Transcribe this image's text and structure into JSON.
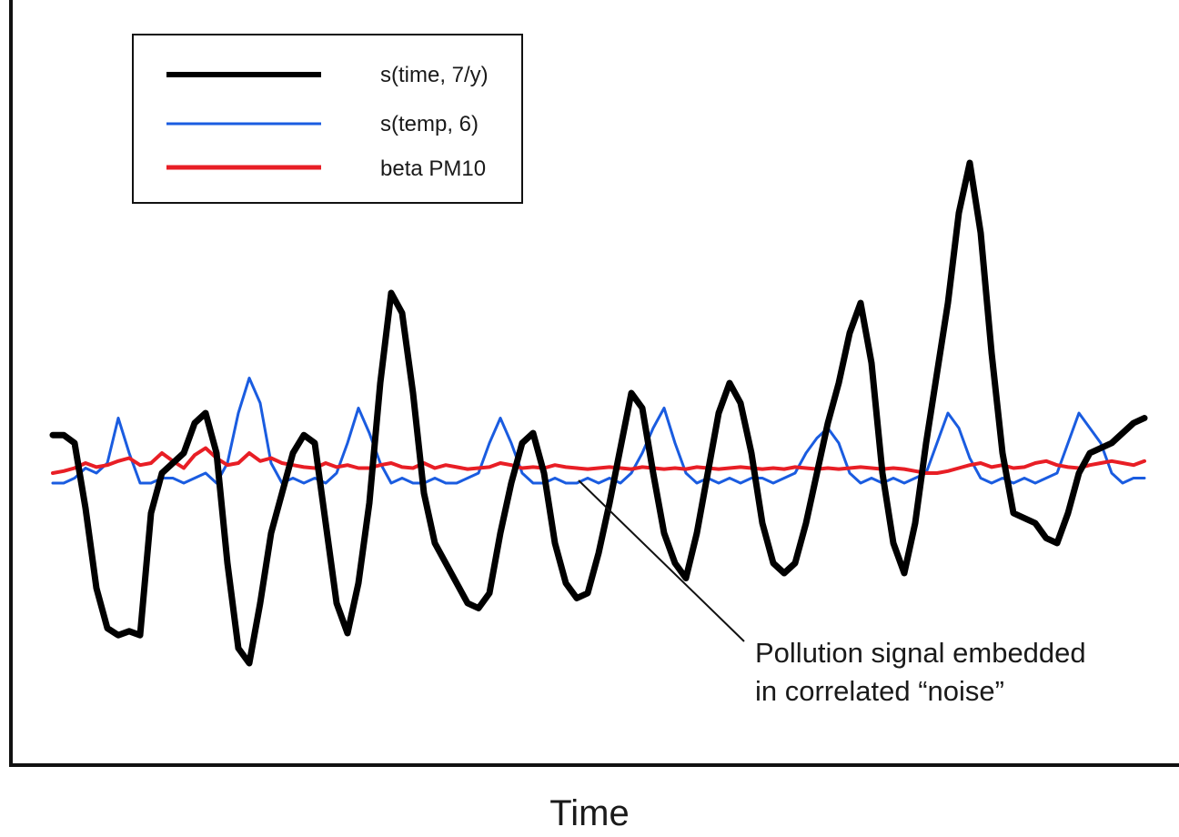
{
  "chart_data": {
    "type": "line",
    "title": "",
    "xlabel": "Time",
    "ylabel": "",
    "grid": false,
    "legend_placement": "top-left",
    "x": [
      0,
      1,
      2,
      3,
      4,
      5,
      6,
      7,
      8,
      9,
      10,
      11,
      12,
      13,
      14,
      15,
      16,
      17,
      18,
      19,
      20,
      21,
      22,
      23,
      24,
      25,
      26,
      27,
      28,
      29,
      30,
      31,
      32,
      33,
      34,
      35,
      36,
      37,
      38,
      39,
      40,
      41,
      42,
      43,
      44,
      45,
      46,
      47,
      48,
      49,
      50,
      51,
      52,
      53,
      54,
      55,
      56,
      57,
      58,
      59,
      60,
      61,
      62,
      63,
      64,
      65,
      66,
      67,
      68,
      69,
      70,
      71,
      72,
      73,
      74,
      75,
      76,
      77,
      78,
      79,
      80,
      81,
      82,
      83,
      84,
      85,
      86,
      87,
      88,
      89,
      90,
      91,
      92,
      93,
      94,
      95,
      96,
      97,
      98,
      99,
      100
    ],
    "ylim": [
      -2.5,
      2.5
    ],
    "series": [
      {
        "name": "s(time, 7/y)",
        "color": "#000000",
        "values": [
          0.38,
          0.38,
          0.3,
          -0.35,
          -1.15,
          -1.55,
          -1.62,
          -1.58,
          -1.62,
          -0.4,
          0.0,
          0.1,
          0.2,
          0.5,
          0.6,
          0.2,
          -0.9,
          -1.75,
          -1.9,
          -1.3,
          -0.6,
          -0.2,
          0.2,
          0.38,
          0.3,
          -0.5,
          -1.3,
          -1.6,
          -1.1,
          -0.3,
          0.9,
          1.8,
          1.6,
          0.8,
          -0.2,
          -0.7,
          -0.9,
          -1.1,
          -1.3,
          -1.35,
          -1.2,
          -0.6,
          -0.1,
          0.3,
          0.4,
          0.0,
          -0.7,
          -1.1,
          -1.25,
          -1.2,
          -0.8,
          -0.3,
          0.25,
          0.8,
          0.65,
          0.0,
          -0.6,
          -0.9,
          -1.05,
          -0.6,
          0.0,
          0.6,
          0.9,
          0.7,
          0.2,
          -0.5,
          -0.9,
          -1.0,
          -0.9,
          -0.5,
          0.0,
          0.5,
          0.9,
          1.4,
          1.7,
          1.1,
          0.0,
          -0.7,
          -1.0,
          -0.5,
          0.3,
          1.0,
          1.7,
          2.6,
          3.1,
          2.4,
          1.2,
          0.2,
          -0.4,
          -0.45,
          -0.5,
          -0.65,
          -0.7,
          -0.4,
          0.0,
          0.2,
          0.25,
          0.3,
          0.4,
          0.5,
          0.55
        ]
      },
      {
        "name": "s(temp, 6)",
        "color": "#1a5ce0",
        "values": [
          -0.1,
          -0.1,
          -0.05,
          0.05,
          0.0,
          0.1,
          0.55,
          0.2,
          -0.1,
          -0.1,
          -0.05,
          -0.05,
          -0.1,
          -0.05,
          0.0,
          -0.1,
          0.1,
          0.6,
          0.95,
          0.7,
          0.1,
          -0.1,
          -0.05,
          -0.1,
          -0.05,
          -0.1,
          0.0,
          0.3,
          0.65,
          0.4,
          0.1,
          -0.1,
          -0.05,
          -0.1,
          -0.1,
          -0.05,
          -0.1,
          -0.1,
          -0.05,
          0.0,
          0.3,
          0.55,
          0.3,
          0.0,
          -0.1,
          -0.1,
          -0.05,
          -0.1,
          -0.1,
          -0.05,
          -0.1,
          -0.05,
          -0.1,
          0.0,
          0.2,
          0.45,
          0.65,
          0.3,
          0.0,
          -0.1,
          -0.05,
          -0.1,
          -0.05,
          -0.1,
          -0.05,
          -0.05,
          -0.1,
          -0.05,
          0.0,
          0.2,
          0.35,
          0.45,
          0.3,
          0.0,
          -0.1,
          -0.05,
          -0.1,
          -0.05,
          -0.1,
          -0.05,
          0.0,
          0.3,
          0.6,
          0.45,
          0.15,
          -0.05,
          -0.1,
          -0.05,
          -0.1,
          -0.05,
          -0.1,
          -0.05,
          0.0,
          0.3,
          0.6,
          0.45,
          0.3,
          0.0,
          -0.1,
          -0.05,
          -0.05
        ]
      },
      {
        "name": "beta PM10",
        "color": "#e81e25",
        "values": [
          0.0,
          0.02,
          0.05,
          0.1,
          0.06,
          0.08,
          0.12,
          0.15,
          0.08,
          0.1,
          0.2,
          0.12,
          0.05,
          0.18,
          0.25,
          0.15,
          0.08,
          0.1,
          0.2,
          0.12,
          0.15,
          0.1,
          0.08,
          0.06,
          0.05,
          0.1,
          0.06,
          0.08,
          0.05,
          0.05,
          0.08,
          0.1,
          0.06,
          0.05,
          0.1,
          0.05,
          0.08,
          0.06,
          0.04,
          0.05,
          0.06,
          0.1,
          0.08,
          0.05,
          0.06,
          0.05,
          0.08,
          0.06,
          0.05,
          0.04,
          0.05,
          0.06,
          0.05,
          0.04,
          0.06,
          0.05,
          0.04,
          0.05,
          0.04,
          0.06,
          0.05,
          0.04,
          0.05,
          0.06,
          0.05,
          0.04,
          0.05,
          0.04,
          0.06,
          0.05,
          0.04,
          0.05,
          0.04,
          0.05,
          0.06,
          0.05,
          0.04,
          0.05,
          0.04,
          0.02,
          0.0,
          0.0,
          0.02,
          0.05,
          0.08,
          0.1,
          0.06,
          0.08,
          0.05,
          0.06,
          0.1,
          0.12,
          0.08,
          0.06,
          0.05,
          0.08,
          0.1,
          0.12,
          0.1,
          0.08,
          0.12
        ]
      }
    ],
    "annotations": [
      {
        "text_line1": "Pollution signal embedded",
        "text_line2": "in correlated “noise”"
      }
    ]
  }
}
